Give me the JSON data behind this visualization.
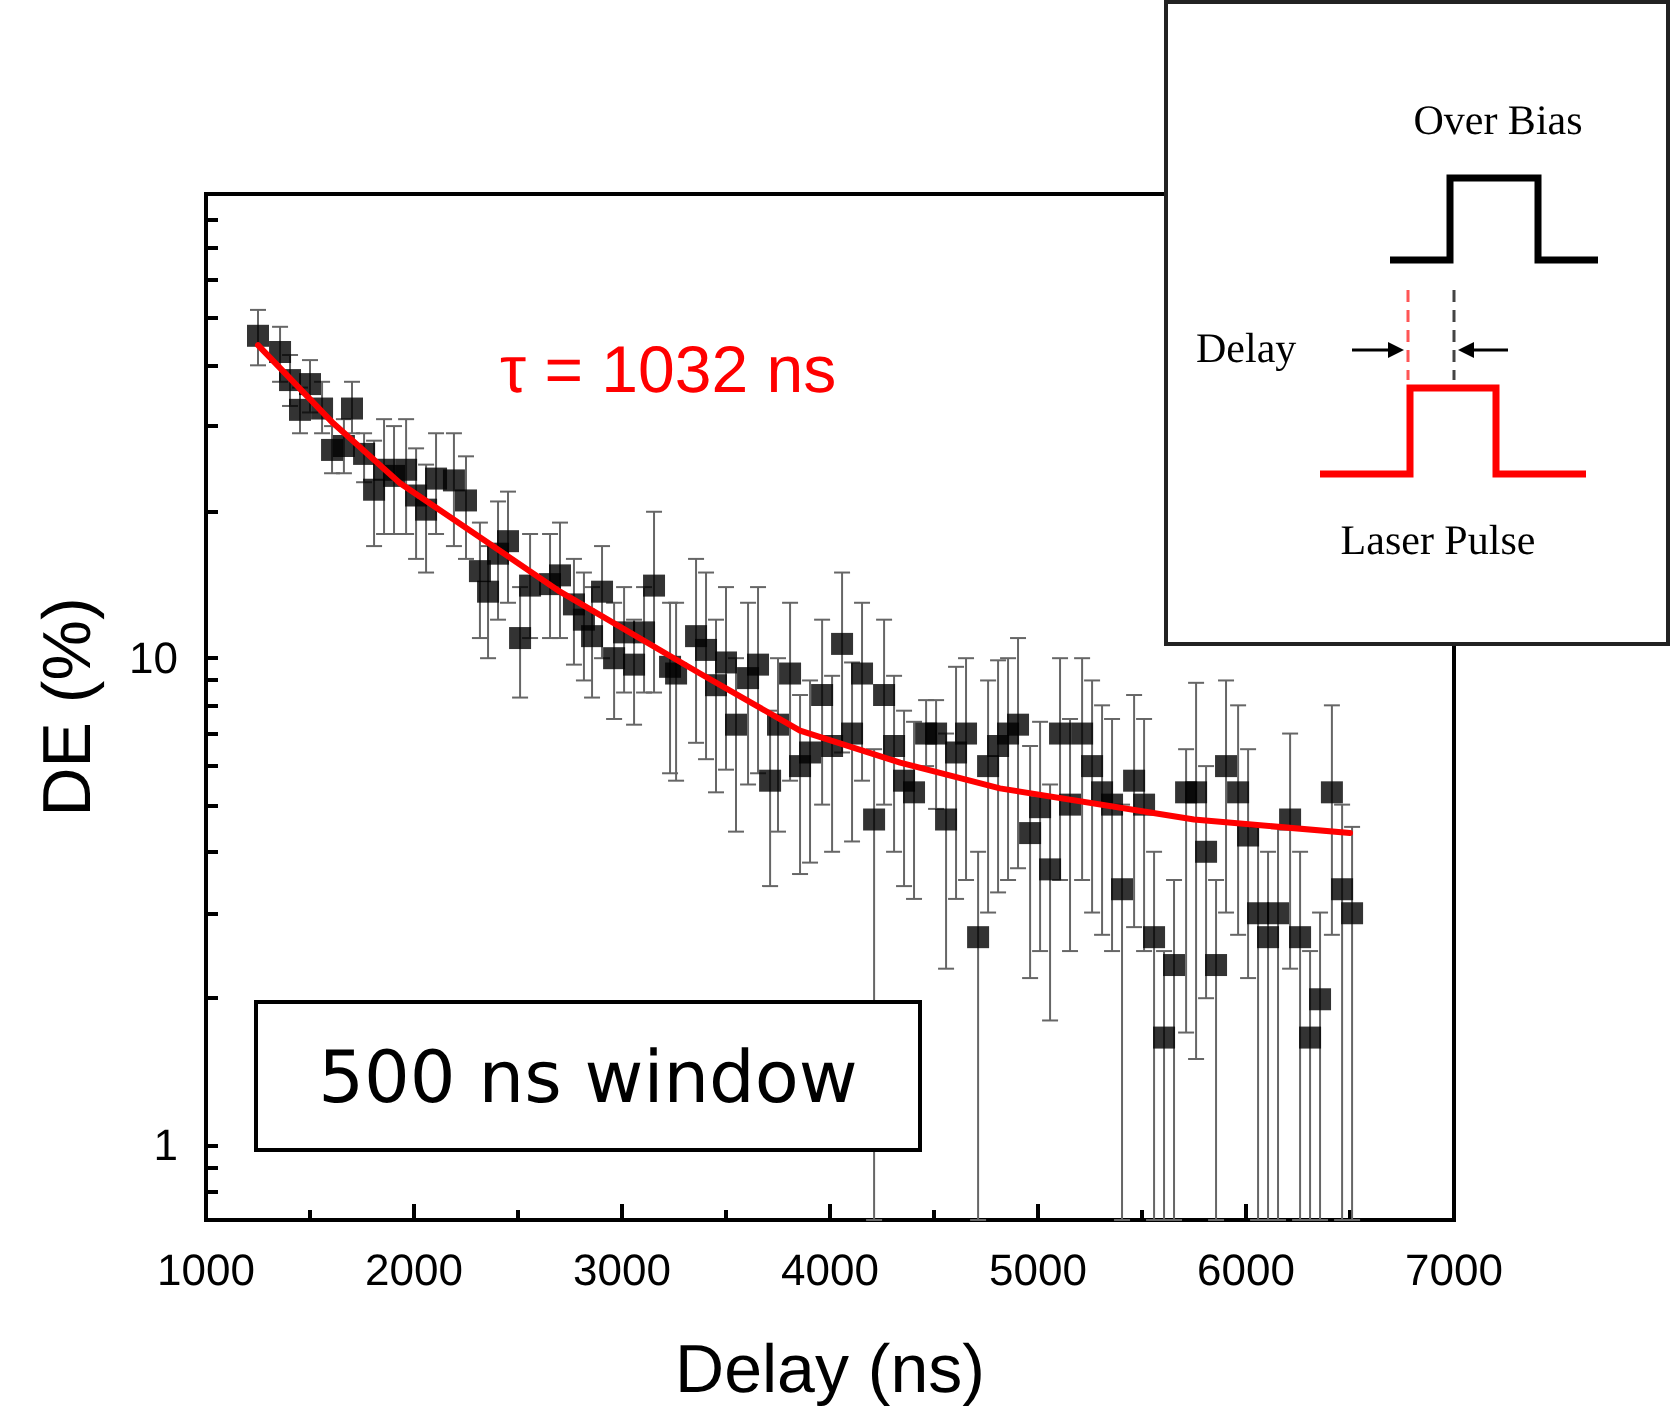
{
  "chart_data": {
    "type": "scatter",
    "xlabel": "Delay (ns)",
    "ylabel": "DE (%)",
    "xlim": [
      1000,
      7000
    ],
    "xticks": [
      1000,
      2000,
      3000,
      4000,
      5000,
      6000,
      7000
    ],
    "ylim": [
      0.7,
      90
    ],
    "yticks": [
      {
        "value": 0.8,
        "label": null
      },
      {
        "value": 0.9,
        "label": null
      },
      1,
      {
        "value": 2,
        "label": null
      },
      {
        "value": 3,
        "label": null
      },
      {
        "value": 4,
        "label": null
      },
      {
        "value": 5,
        "label": null
      },
      {
        "value": 6,
        "label": null
      },
      {
        "value": 7,
        "label": null
      },
      {
        "value": 8,
        "label": null
      },
      {
        "value": 9,
        "label": null
      },
      10,
      {
        "value": 20,
        "label": null
      },
      {
        "value": 30,
        "label": null
      },
      {
        "value": 40,
        "label": null
      },
      {
        "value": 50,
        "label": null
      },
      {
        "value": 60,
        "label": null
      },
      {
        "value": 70,
        "label": null
      },
      {
        "value": 80,
        "label": null
      }
    ],
    "log": "y",
    "grid": false,
    "legend": false,
    "marker": "square",
    "series": [
      {
        "color": "#000000",
        "x": [
          1250,
          1356,
          1404,
          1452,
          1500,
          1558,
          1606,
          1663,
          1702,
          1760,
          1808,
          1856,
          1904,
          1962,
          2010,
          2058,
          2106,
          2192,
          2250,
          2317,
          2356,
          2404,
          2452,
          2510,
          2558,
          2654,
          2702,
          2769,
          2817,
          2856,
          2904,
          2962,
          3010,
          3058,
          3106,
          3154,
          3231,
          3260,
          3356,
          3404,
          3452,
          3500,
          3548,
          3606,
          3654,
          3712,
          3750,
          3808,
          3856,
          3904,
          3962,
          4010,
          4058,
          4106,
          4154,
          4212,
          4260,
          4308,
          4356,
          4404,
          4462,
          4510,
          4558,
          4606,
          4654,
          4712,
          4760,
          4808,
          4856,
          4904,
          4962,
          5010,
          5058,
          5106,
          5154,
          5212,
          5260,
          5308,
          5356,
          5404,
          5462,
          5510,
          5558,
          5606,
          5654,
          5712,
          5760,
          5808,
          5856,
          5904,
          5962,
          6010,
          6058,
          6106,
          6154,
          6212,
          6260,
          6308,
          6356,
          6413,
          6462,
          6510
        ],
        "values": [
          46,
          42.6,
          37.3,
          32.4,
          36.6,
          32.6,
          26.8,
          27.3,
          32.6,
          26.3,
          22.2,
          24.4,
          23.7,
          24.4,
          21.6,
          20.2,
          23.4,
          23.2,
          21.1,
          15.1,
          13.7,
          16.4,
          17.4,
          11.0,
          14.1,
          14.2,
          14.8,
          12.9,
          12.0,
          11.1,
          13.7,
          10.0,
          11.3,
          9.7,
          11.3,
          14.1,
          9.6,
          9.3,
          11.1,
          10.4,
          8.8,
          9.8,
          7.3,
          9.1,
          9.7,
          5.6,
          7.3,
          9.3,
          6.0,
          6.4,
          8.4,
          6.6,
          10.7,
          7.0,
          9.3,
          4.66,
          8.4,
          6.6,
          5.6,
          5.3,
          7.0,
          7.0,
          4.66,
          6.4,
          7.0,
          2.67,
          6.0,
          6.6,
          7.0,
          7.3,
          4.37,
          4.94,
          3.68,
          7.0,
          5.0,
          7.0,
          6.0,
          5.3,
          5.0,
          3.35,
          5.6,
          5.0,
          2.67,
          1.66,
          2.34,
          5.3,
          5.3,
          4.0,
          2.34,
          6.0,
          5.3,
          4.32,
          2.99,
          2.67,
          2.99,
          4.66,
          2.67,
          1.66,
          1.99,
          5.3,
          3.35,
          2.99
        ],
        "errors": [
          [
            40,
            52
          ],
          [
            37,
            48
          ],
          [
            33,
            42
          ],
          [
            29,
            36
          ],
          [
            32,
            41
          ],
          [
            29,
            37
          ],
          [
            24,
            30
          ],
          [
            24,
            31
          ],
          [
            29,
            37
          ],
          [
            23,
            29
          ],
          [
            17,
            28
          ],
          [
            18,
            31
          ],
          [
            18,
            30
          ],
          [
            18,
            31
          ],
          [
            16,
            27
          ],
          [
            15,
            25
          ],
          [
            18,
            29
          ],
          [
            17,
            29
          ],
          [
            16,
            26
          ],
          [
            11,
            19
          ],
          [
            10,
            17
          ],
          [
            12,
            21
          ],
          [
            13,
            22
          ],
          [
            8.3,
            14
          ],
          [
            11,
            18
          ],
          [
            11,
            18
          ],
          [
            11,
            19
          ],
          [
            9.7,
            16
          ],
          [
            9,
            15
          ],
          [
            8.3,
            14
          ],
          [
            10,
            17
          ],
          [
            7.5,
            13
          ],
          [
            8.5,
            14
          ],
          [
            7.3,
            12
          ],
          [
            8.5,
            14
          ],
          [
            8.5,
            20
          ],
          [
            5.8,
            13
          ],
          [
            5.6,
            13
          ],
          [
            6.7,
            16
          ],
          [
            6.2,
            15
          ],
          [
            5.3,
            12
          ],
          [
            5.9,
            14
          ],
          [
            4.4,
            10
          ],
          [
            5.5,
            13
          ],
          [
            5.8,
            14
          ],
          [
            3.4,
            7.8
          ],
          [
            4.4,
            10
          ],
          [
            5.6,
            13
          ],
          [
            3.6,
            8.4
          ],
          [
            3.8,
            9
          ],
          [
            5,
            12
          ],
          [
            4,
            9.2
          ],
          [
            6.4,
            15
          ],
          [
            4.2,
            9.8
          ],
          [
            5.6,
            13
          ],
          [
            0.7,
            6.5
          ],
          [
            5,
            12
          ],
          [
            4,
            9.2
          ],
          [
            3.4,
            7.8
          ],
          [
            3.2,
            7.4
          ],
          [
            6.0,
            8.2
          ],
          [
            4.9,
            8.2
          ],
          [
            2.3,
            7
          ],
          [
            3.2,
            9.6
          ],
          [
            3.5,
            10
          ],
          [
            0.7,
            4
          ],
          [
            3,
            9
          ],
          [
            3.3,
            9.9
          ],
          [
            3.5,
            10
          ],
          [
            3.7,
            11
          ],
          [
            2.2,
            6.6
          ],
          [
            2.5,
            7.4
          ],
          [
            1.8,
            5.5
          ],
          [
            3.5,
            10
          ],
          [
            2.5,
            7.5
          ],
          [
            3.5,
            10
          ],
          [
            3,
            9
          ],
          [
            2.7,
            8
          ],
          [
            2.5,
            7.5
          ],
          [
            0.7,
            5
          ],
          [
            2.8,
            8.4
          ],
          [
            2.5,
            7.5
          ],
          [
            0.7,
            4
          ],
          [
            0.7,
            2.5
          ],
          [
            0.7,
            3.5
          ],
          [
            1.7,
            6.5
          ],
          [
            1.5,
            8.9
          ],
          [
            2,
            6
          ],
          [
            0.7,
            3.5
          ],
          [
            3,
            9
          ],
          [
            2.7,
            8
          ],
          [
            2.2,
            6.5
          ],
          [
            0.7,
            4.5
          ],
          [
            0.7,
            4
          ],
          [
            0.7,
            4.5
          ],
          [
            2.3,
            7
          ],
          [
            0.7,
            4
          ],
          [
            0.7,
            2.5
          ],
          [
            0.7,
            3
          ],
          [
            2.7,
            8
          ],
          [
            0.7,
            5
          ],
          [
            0.7,
            4.5
          ]
        ]
      },
      {
        "type": "line",
        "color": "#ff0000",
        "marker": "none",
        "x": [
          1250,
          1612,
          1933,
          2702,
          3375,
          3856,
          4337,
          4817,
          5750,
          6500
        ],
        "values": [
          44,
          30.4,
          22.9,
          13.7,
          9.3,
          7.1,
          6.1,
          5.4,
          4.66,
          4.37
        ]
      }
    ],
    "annotations": [
      "τ = 1032 ns",
      "500 ns window",
      "Over Bias",
      "Delay",
      "Laser Pulse"
    ]
  }
}
